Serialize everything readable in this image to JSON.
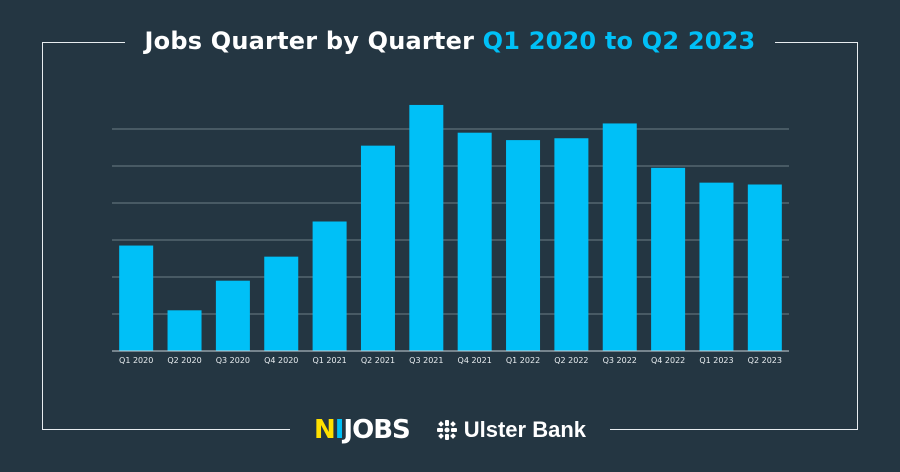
{
  "title": {
    "main": "Jobs Quarter by Quarter ",
    "accent": "Q1 2020 to Q2 2023"
  },
  "footer": {
    "brand1_n": "N",
    "brand1_i": "I",
    "brand1_rest": "JOBS",
    "brand2": "Ulster Bank",
    "brand2_icon": "ulster-bank-logo-icon"
  },
  "colors": {
    "background": "#243642",
    "bar": "#00c0f7",
    "accent": "#00c0f7",
    "gridline": "#6b7d87"
  },
  "chart_data": {
    "type": "bar",
    "categories": [
      "Q1 2020",
      "Q2 2020",
      "Q3 2020",
      "Q4 2020",
      "Q1 2021",
      "Q2 2021",
      "Q3 2021",
      "Q4 2021",
      "Q1 2022",
      "Q2 2022",
      "Q3 2022",
      "Q4 2022",
      "Q1 2023",
      "Q2 2023"
    ],
    "values": [
      2.85,
      1.1,
      1.9,
      2.55,
      3.5,
      5.55,
      6.65,
      5.9,
      5.7,
      5.75,
      6.15,
      4.95,
      4.55,
      4.5
    ],
    "title": "Jobs Quarter by Quarter Q1 2020 to Q2 2023",
    "xlabel": "",
    "ylabel": "",
    "ylim": [
      0,
      7
    ],
    "grid": true,
    "gridlines": [
      1,
      2,
      3,
      4,
      5,
      6
    ],
    "y_tick_labels": false,
    "legend": "none"
  }
}
